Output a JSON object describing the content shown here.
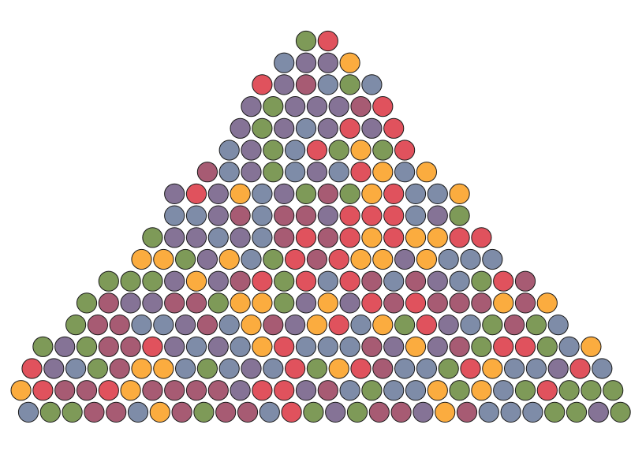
{
  "palette": {
    "g": "#7e9a58",
    "r": "#e0525d",
    "s": "#7e8ca8",
    "p": "#857396",
    "o": "#fbac3f",
    "m": "#a75b73"
  },
  "rows": [
    "gr",
    "sppo",
    "rpmsgs",
    "pgpppmr",
    "pgpsprpr",
    "spgsrgogr",
    "mspgspsroso",
    "prpospgmgorsso",
    "sspmsmmprrrspg",
    "gppspsmrmroroorr",
    "oogposgrmrooposss",
    "gggpopmrgrsrmsmpsgrm",
    "gmppmmgoogpoprmrmmmomo",
    "gmmsspmsomporsogrpsgmgs",
    "gpgmmrpspsorsssmpopmgrrgso",
    "rpsgmoosgspsrgormssgrossprs",
    "ormmrommmmprrpmsgssogosgrggg",
    "sggmmsomgmmsrgpgmmpomsssggpgpm"
  ]
}
